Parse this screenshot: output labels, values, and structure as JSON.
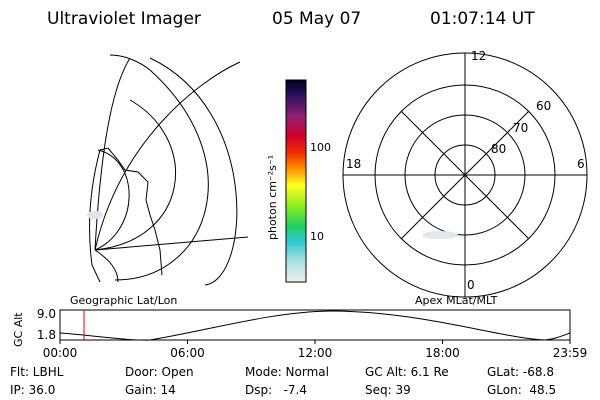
{
  "header": {
    "title": "Ultraviolet Imager",
    "date": "05 May 07",
    "time": "01:07:14 UT"
  },
  "panels": {
    "left_label": "Geographic Lat/Lon",
    "right_label": "Apex MLat/MLT"
  },
  "colorbar": {
    "label": "photon cm⁻²s⁻¹",
    "ticks": [
      "100",
      "10"
    ]
  },
  "polar": {
    "mlt_labels": [
      "12",
      "18",
      "6",
      "0"
    ],
    "mlat_labels": [
      "60",
      "70",
      "80"
    ]
  },
  "timeline": {
    "axis_label": "GC Alt",
    "yticks": [
      "9.0",
      "1.8"
    ],
    "xticks": [
      "00:00",
      "06:00",
      "12:00",
      "18:00",
      "23:59"
    ]
  },
  "status": {
    "rows": [
      [
        "Flt: LBHL",
        "Door: Open",
        "Mode: Normal",
        "GC Alt: 6.1 Re",
        "GLat: -68.8"
      ],
      [
        "IP: 36.0",
        "Gain: 14",
        "Dsp:   -7.4",
        "Seq: 39",
        "GLon:  48.5"
      ]
    ]
  }
}
